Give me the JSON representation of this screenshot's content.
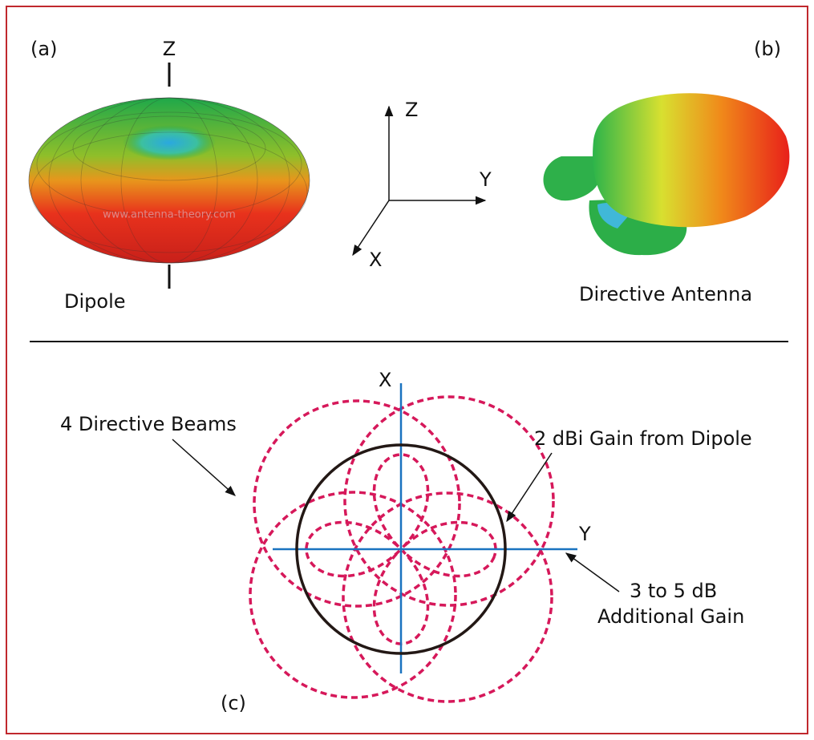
{
  "panel_a": {
    "label": "(a)",
    "axis": "Z",
    "caption": "Dipole",
    "watermark": "www.antenna-theory.com"
  },
  "axes": {
    "z": "Z",
    "y": "Y",
    "x": "X"
  },
  "panel_b": {
    "label": "(b)",
    "caption": "Directive Antenna"
  },
  "panel_c": {
    "label": "(c)",
    "x_axis": "X",
    "y_axis": "Y",
    "annotations": [
      "4 Directive Beams",
      "2 dBi Gain from Dipole",
      "3 to 5 dB",
      "Additional Gain"
    ]
  }
}
